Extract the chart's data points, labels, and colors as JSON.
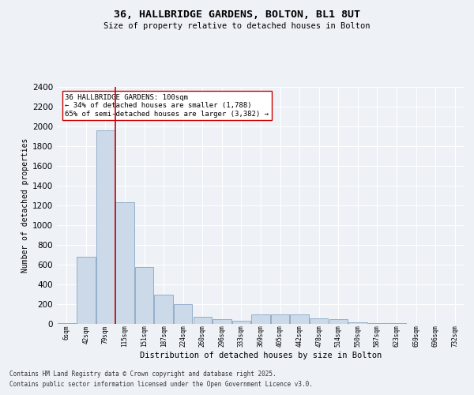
{
  "title1": "36, HALLBRIDGE GARDENS, BOLTON, BL1 8UT",
  "title2": "Size of property relative to detached houses in Bolton",
  "xlabel": "Distribution of detached houses by size in Bolton",
  "ylabel": "Number of detached properties",
  "categories": [
    "6sqm",
    "42sqm",
    "79sqm",
    "115sqm",
    "151sqm",
    "187sqm",
    "224sqm",
    "260sqm",
    "296sqm",
    "333sqm",
    "369sqm",
    "405sqm",
    "442sqm",
    "478sqm",
    "514sqm",
    "550sqm",
    "587sqm",
    "623sqm",
    "659sqm",
    "696sqm",
    "732sqm"
  ],
  "values": [
    5,
    680,
    1960,
    1230,
    575,
    300,
    200,
    75,
    50,
    30,
    100,
    95,
    95,
    55,
    45,
    20,
    10,
    5,
    3,
    2,
    1
  ],
  "bar_color": "#ccd9e8",
  "bar_edge_color": "#7799bb",
  "bg_color": "#eef2f7",
  "grid_color": "#ffffff",
  "annotation_text": "36 HALLBRIDGE GARDENS: 100sqm\n← 34% of detached houses are smaller (1,788)\n65% of semi-detached houses are larger (3,382) →",
  "vline_color": "#cc0000",
  "annotation_box_color": "#ffffff",
  "annotation_box_edge": "#cc0000",
  "ylim": [
    0,
    2400
  ],
  "yticks": [
    0,
    200,
    400,
    600,
    800,
    1000,
    1200,
    1400,
    1600,
    1800,
    2000,
    2200,
    2400
  ],
  "footer1": "Contains HM Land Registry data © Crown copyright and database right 2025.",
  "footer2": "Contains public sector information licensed under the Open Government Licence v3.0."
}
